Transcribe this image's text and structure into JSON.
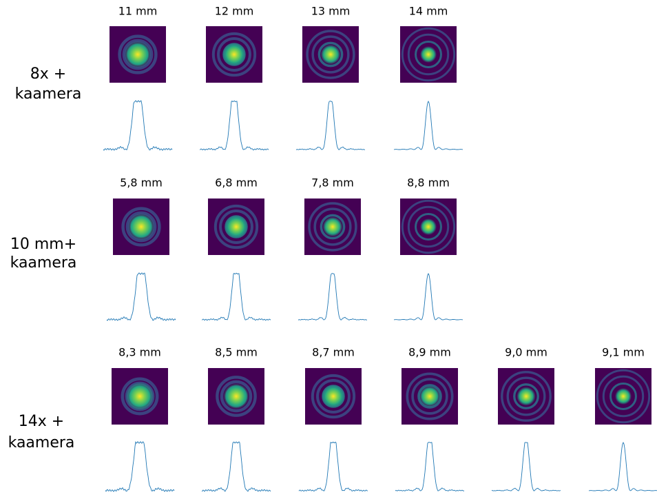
{
  "rows": [
    {
      "label": [
        "8x +",
        "kaamera"
      ],
      "panels": [
        "11 mm",
        "12 mm",
        "13 mm",
        "14 mm"
      ]
    },
    {
      "label": [
        "10 mm+",
        "kaamera"
      ],
      "panels": [
        "5,8 mm",
        "6,8 mm",
        "7,8 mm",
        "8,8 mm"
      ]
    },
    {
      "label": [
        "14x +",
        "kaamera"
      ],
      "panels": [
        "8,3 mm",
        "8,5 mm",
        "8,7 mm",
        "8,9 mm",
        "9,0 mm",
        "9,1 mm"
      ]
    }
  ]
}
